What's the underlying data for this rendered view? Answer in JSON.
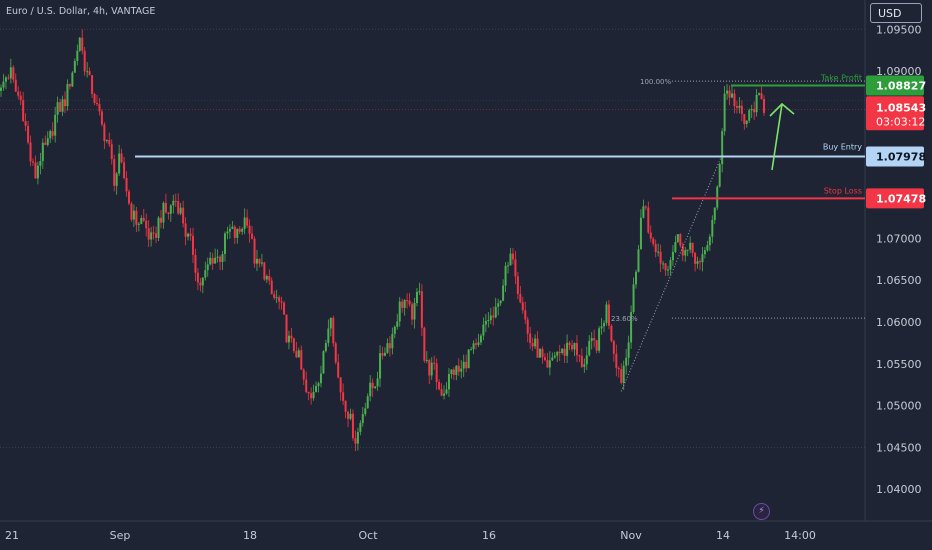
{
  "header": {
    "title": "Euro / U.S. Dollar, 4h, VANTAGE",
    "currency": "USD"
  },
  "price_axis": {
    "ticks": [
      "1.09500",
      "1.09000",
      "1.07000",
      "1.06500",
      "1.06000",
      "1.05500",
      "1.05000",
      "1.04500",
      "1.04000"
    ]
  },
  "time_axis": {
    "ticks": [
      "21",
      "Sep",
      "18",
      "Oct",
      "16",
      "Nov",
      "14",
      "14:00"
    ]
  },
  "levels": {
    "take_profit": {
      "label": "Take Profit",
      "price": "1.08827",
      "color": "#2e9e3b"
    },
    "buy_entry": {
      "label": "Buy Entry",
      "price": "1.07978",
      "color": "#b3d4f5"
    },
    "stop_loss": {
      "label": "Stop Loss",
      "price": "1.07478",
      "color": "#f23645"
    }
  },
  "fib_labels": {
    "full": "100.00%",
    "partial": "23.60%"
  },
  "current_price": {
    "price": "1.08543",
    "countdown": "03:03:12",
    "color": "#f23645"
  },
  "colors": {
    "up": "#4caf50",
    "down": "#f23645",
    "background": "#1e2433",
    "arrow": "#7be36e"
  },
  "chart_data": {
    "type": "candlestick",
    "title": "Euro / U.S. Dollar, 4h, VANTAGE",
    "ylim": [
      1.0362,
      1.0985
    ],
    "close_path": [
      [
        0,
        1.0875
      ],
      [
        4,
        1.09
      ],
      [
        8,
        1.086
      ],
      [
        12,
        1.08
      ],
      [
        14,
        1.0775
      ],
      [
        18,
        1.081
      ],
      [
        24,
        1.0855
      ],
      [
        30,
        1.0905
      ],
      [
        32,
        1.0945
      ],
      [
        36,
        1.088
      ],
      [
        40,
        1.085
      ],
      [
        44,
        1.08
      ],
      [
        46,
        1.0775
      ],
      [
        48,
        1.0795
      ],
      [
        52,
        1.074
      ],
      [
        56,
        1.072
      ],
      [
        62,
        1.07
      ],
      [
        66,
        1.073
      ],
      [
        70,
        1.0745
      ],
      [
        74,
        1.0725
      ],
      [
        78,
        1.068
      ],
      [
        80,
        1.0645
      ],
      [
        84,
        1.0665
      ],
      [
        88,
        1.068
      ],
      [
        92,
        1.07
      ],
      [
        96,
        1.071
      ],
      [
        100,
        1.072
      ],
      [
        104,
        1.067
      ],
      [
        108,
        1.065
      ],
      [
        112,
        1.0625
      ],
      [
        116,
        1.059
      ],
      [
        120,
        1.056
      ],
      [
        124,
        1.052
      ],
      [
        126,
        1.0505
      ],
      [
        130,
        1.0545
      ],
      [
        132,
        1.058
      ],
      [
        134,
        1.061
      ],
      [
        136,
        1.055
      ],
      [
        140,
        1.05
      ],
      [
        142,
        1.0475
      ],
      [
        144,
        1.0465
      ],
      [
        148,
        1.05
      ],
      [
        152,
        1.0535
      ],
      [
        156,
        1.0565
      ],
      [
        160,
        1.06
      ],
      [
        164,
        1.0625
      ],
      [
        168,
        1.061
      ],
      [
        170,
        1.064
      ],
      [
        172,
        1.056
      ],
      [
        176,
        1.0535
      ],
      [
        178,
        1.052
      ],
      [
        182,
        1.053
      ],
      [
        186,
        1.0545
      ],
      [
        190,
        1.0555
      ],
      [
        194,
        1.0575
      ],
      [
        198,
        1.06
      ],
      [
        202,
        1.062
      ],
      [
        206,
        1.0665
      ],
      [
        208,
        1.069
      ],
      [
        210,
        1.064
      ],
      [
        214,
        1.059
      ],
      [
        218,
        1.056
      ],
      [
        222,
        1.0545
      ],
      [
        226,
        1.056
      ],
      [
        230,
        1.0575
      ],
      [
        234,
        1.056
      ],
      [
        238,
        1.0555
      ],
      [
        242,
        1.058
      ],
      [
        246,
        1.061
      ],
      [
        250,
        1.056
      ],
      [
        252,
        1.053
      ],
      [
        254,
        1.0555
      ],
      [
        256,
        1.062
      ],
      [
        258,
        1.066
      ],
      [
        260,
        1.072
      ],
      [
        262,
        1.074
      ],
      [
        264,
        1.07
      ],
      [
        268,
        1.067
      ],
      [
        272,
        1.068
      ],
      [
        276,
        1.07
      ],
      [
        280,
        1.068
      ],
      [
        284,
        1.067
      ],
      [
        288,
        1.07
      ],
      [
        290,
        1.073
      ],
      [
        292,
        1.08
      ],
      [
        294,
        1.087
      ],
      [
        298,
        1.087
      ],
      [
        300,
        1.085
      ],
      [
        302,
        1.083
      ],
      [
        306,
        1.0865
      ],
      [
        310,
        1.0855
      ]
    ],
    "candle_count": 311,
    "levels": {
      "take_profit": 1.08827,
      "buy_entry": 1.07978,
      "stop_loss": 1.07478,
      "current": 1.08543
    },
    "fib": {
      "low": 1.0517,
      "high": 1.0888,
      "ratios": [
        1.0,
        0.236
      ]
    },
    "legend": "none",
    "grid": false
  }
}
